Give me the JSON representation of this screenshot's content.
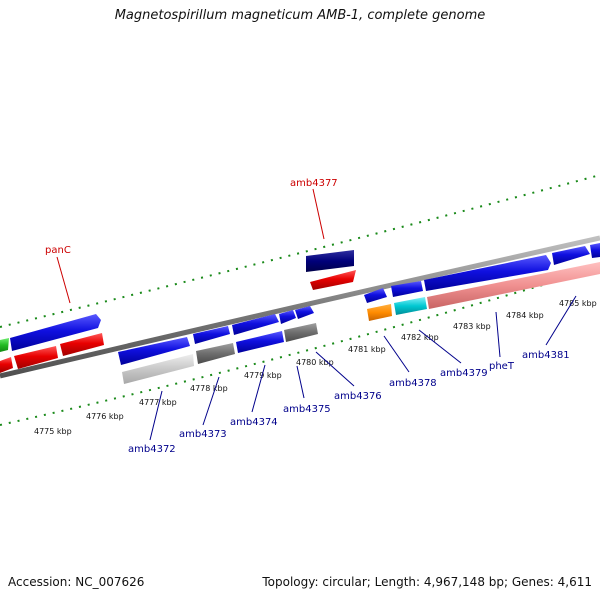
{
  "title": "Magnetospirillum magneticum AMB-1, complete genome",
  "footer": {
    "accession": "Accession: NC_007626",
    "topology": "Topology: circular; Length: 4,967,148 bp; Genes: 4,611"
  },
  "colors": {
    "cds_blue": "#1010e0",
    "rrna_red": "#e80000",
    "trna_navy": "#00007a",
    "gene_green": "#22bb22",
    "gene_gray": "#6e6e6e",
    "gene_lightgray": "#c8c8c8",
    "gene_orange": "#ff8c00",
    "gene_cyan": "#00c8d2",
    "gene_pink": "#f09090",
    "tick_green": "#1a8a1a",
    "backbone": "#7a7a7a",
    "label_red": "#cc0000",
    "label_blue": "#00008b"
  },
  "kbp_labels": [
    "4775 kbp",
    "4776 kbp",
    "4777 kbp",
    "4778 kbp",
    "4779 kbp",
    "4780 kbp",
    "4781 kbp",
    "4782 kbp",
    "4783 kbp",
    "4784 kbp",
    "4785 kbp"
  ],
  "gene_labels_top": [
    "panC",
    "amb4377"
  ],
  "gene_labels_bottom": [
    "amb4372",
    "amb4373",
    "amb4374",
    "amb4375",
    "amb4376",
    "amb4378",
    "amb4379",
    "pheT",
    "amb4381"
  ]
}
